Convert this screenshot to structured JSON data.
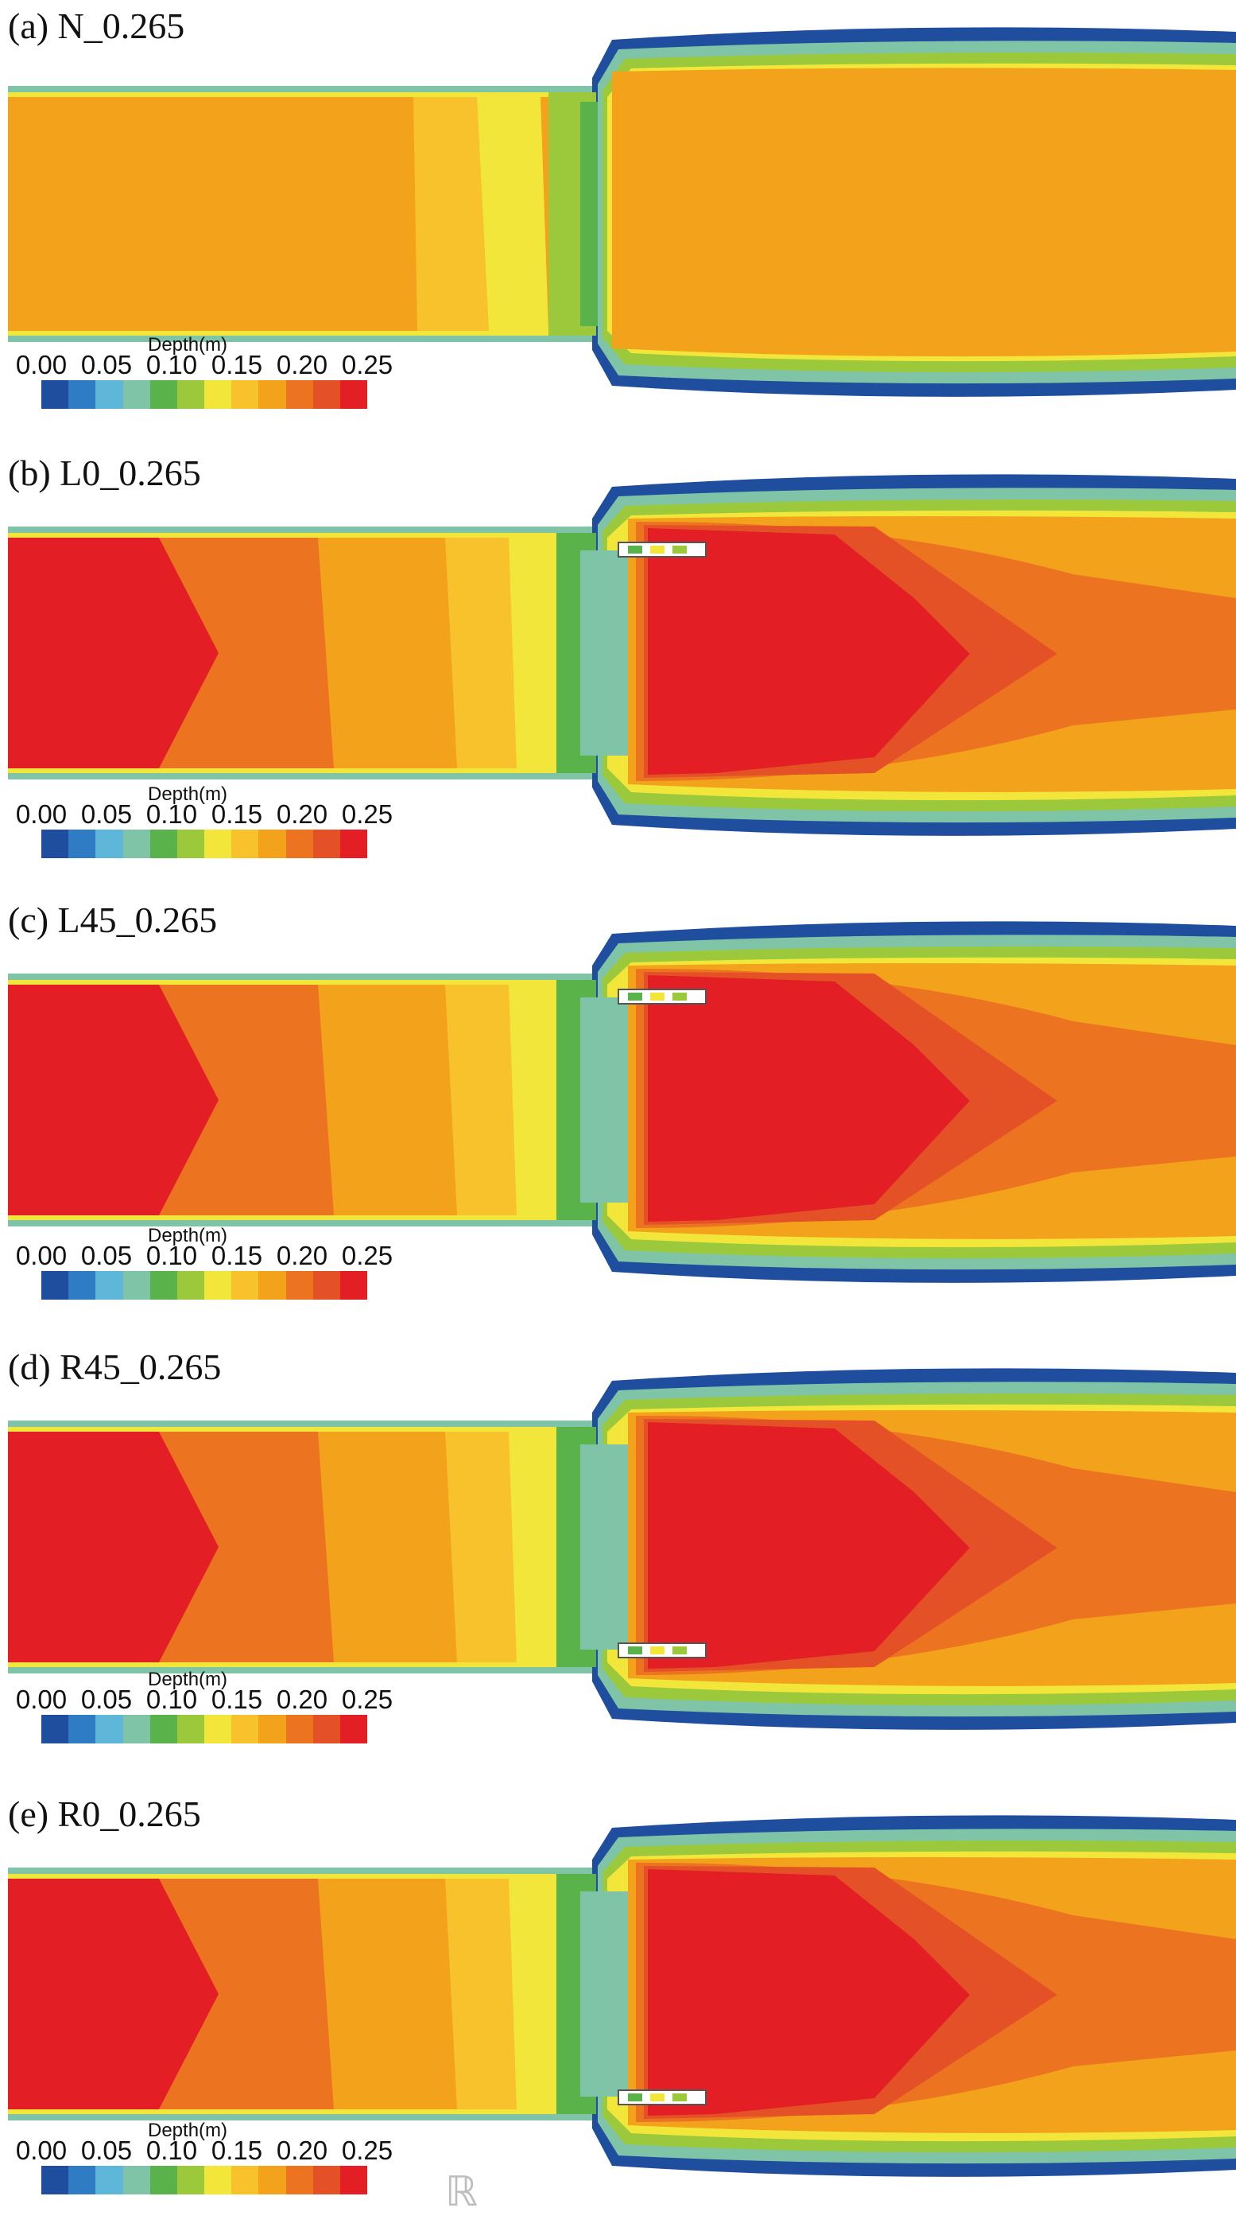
{
  "panels": [
    {
      "label": "(a) N_0.265",
      "deflector": "none"
    },
    {
      "label": "(b) L0_0.265",
      "deflector": "top"
    },
    {
      "label": "(c) L45_0.265",
      "deflector": "top"
    },
    {
      "label": "(d) R45_0.265",
      "deflector": "bottom"
    },
    {
      "label": "(e) R0_0.265",
      "deflector": "bottom"
    }
  ],
  "legend": {
    "title": "Depth(m)",
    "ticks": [
      "0.00",
      "0.05",
      "0.10",
      "0.15",
      "0.20",
      "0.25"
    ],
    "colors": [
      "#1f4e9e",
      "#2f7cc4",
      "#5eb7d8",
      "#7fc4a6",
      "#59b34a",
      "#9cc93c",
      "#f2e63a",
      "#f7c22c",
      "#f3a21c",
      "#ec7420",
      "#e55127",
      "#e31e24"
    ]
  },
  "watermark": "ℝ"
}
